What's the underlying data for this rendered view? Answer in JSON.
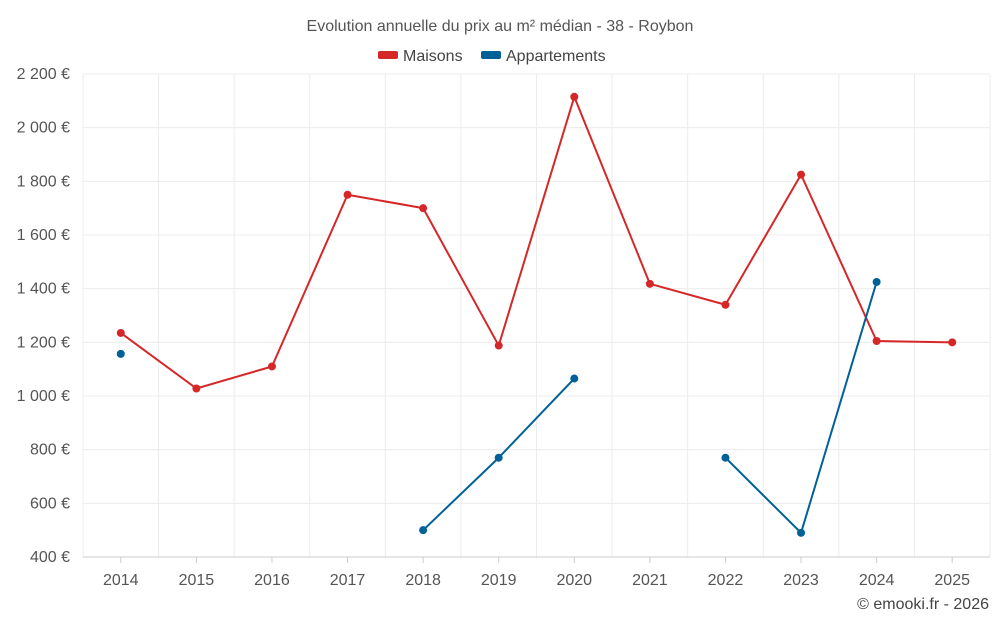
{
  "chart_data": {
    "type": "line",
    "title": "Evolution annuelle du prix au m² médian - 38 - Roybon",
    "xlabel": "",
    "ylabel": "",
    "categories": [
      "2014",
      "2015",
      "2016",
      "2017",
      "2018",
      "2019",
      "2020",
      "2021",
      "2022",
      "2023",
      "2024",
      "2025"
    ],
    "ylim": [
      400,
      2200
    ],
    "yticks": [
      400,
      600,
      800,
      1000,
      1200,
      1400,
      1600,
      1800,
      2000,
      2200
    ],
    "ytick_labels": [
      "400 €",
      "600 €",
      "800 €",
      "1 000 €",
      "1 200 €",
      "1 400 €",
      "1 600 €",
      "1 800 €",
      "2 000 €",
      "2 200 €"
    ],
    "grid": true,
    "legend_position": "top-center",
    "series": [
      {
        "name": "Maisons",
        "color": "#d62728",
        "values": [
          1235,
          1028,
          1110,
          1750,
          1700,
          1188,
          2115,
          1418,
          1340,
          1825,
          1205,
          1200
        ]
      },
      {
        "name": "Appartements",
        "color": "#006199",
        "values": [
          1157,
          null,
          null,
          null,
          500,
          770,
          1065,
          null,
          770,
          490,
          1425,
          null
        ]
      }
    ]
  },
  "credit": "© emooki.fr - 2026"
}
